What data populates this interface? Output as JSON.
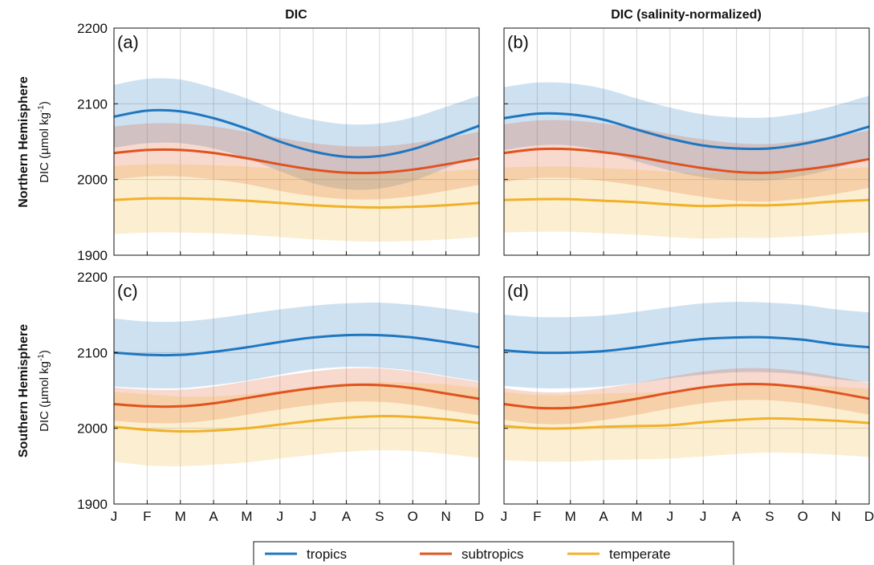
{
  "chart_data": {
    "type": "line",
    "column_titles": [
      "DIC",
      "DIC (salinity-normalized)"
    ],
    "row_titles": [
      "Northern Hemisphere",
      "Southern Hemisphere"
    ],
    "ylabel_prefix": "DIC (µmol kg",
    "ylabel_sup": "-1",
    "ylabel_suffix": ")",
    "ylim": [
      1900,
      2200
    ],
    "yticks": [
      1900,
      2000,
      2100,
      2200
    ],
    "categories": [
      "J",
      "F",
      "M",
      "A",
      "M",
      "J",
      "J",
      "A",
      "S",
      "O",
      "N",
      "D"
    ],
    "grid": true,
    "legend_position": "bottom",
    "colors": {
      "tropics": "#1f77c0",
      "subtropics": "#e0531f",
      "temperate": "#f0b12a"
    },
    "panels": [
      {
        "tag": "(a)",
        "series": [
          {
            "name": "tropics",
            "values": [
              2083,
              2091,
              2090,
              2081,
              2067,
              2050,
              2037,
              2030,
              2031,
              2040,
              2055,
              2071
            ],
            "lower": [
              2042,
              2048,
              2048,
              2041,
              2028,
              2011,
              1995,
              1987,
              1988,
              1998,
              2015,
              2032
            ],
            "upper": [
              2125,
              2133,
              2132,
              2121,
              2107,
              2090,
              2079,
              2073,
              2074,
              2082,
              2096,
              2111
            ]
          },
          {
            "name": "subtropics",
            "values": [
              2035,
              2039,
              2039,
              2035,
              2028,
              2020,
              2013,
              2009,
              2009,
              2013,
              2020,
              2028
            ],
            "lower": [
              2000,
              2004,
              2004,
              2000,
              1994,
              1985,
              1978,
              1974,
              1974,
              1978,
              1985,
              1993
            ],
            "upper": [
              2070,
              2074,
              2074,
              2070,
              2063,
              2055,
              2048,
              2044,
              2044,
              2048,
              2055,
              2063
            ]
          },
          {
            "name": "temperate",
            "values": [
              1973,
              1975,
              1975,
              1974,
              1972,
              1969,
              1966,
              1964,
              1963,
              1964,
              1966,
              1969
            ],
            "lower": [
              1928,
              1930,
              1930,
              1929,
              1927,
              1924,
              1921,
              1919,
              1918,
              1919,
              1921,
              1924
            ],
            "upper": [
              2018,
              2020,
              2020,
              2019,
              2017,
              2014,
              2011,
              2009,
              2008,
              2009,
              2011,
              2014
            ]
          }
        ]
      },
      {
        "tag": "(b)",
        "series": [
          {
            "name": "tropics",
            "values": [
              2081,
              2087,
              2086,
              2079,
              2066,
              2054,
              2045,
              2041,
              2041,
              2047,
              2057,
              2070
            ],
            "lower": [
              2039,
              2045,
              2045,
              2037,
              2024,
              2012,
              2003,
              1999,
              1999,
              2005,
              2015,
              2029
            ],
            "upper": [
              2122,
              2128,
              2127,
              2120,
              2107,
              2095,
              2086,
              2082,
              2082,
              2088,
              2098,
              2111
            ]
          },
          {
            "name": "subtropics",
            "values": [
              2035,
              2040,
              2040,
              2036,
              2030,
              2022,
              2015,
              2010,
              2009,
              2013,
              2019,
              2027
            ],
            "lower": [
              1997,
              2002,
              2002,
              1998,
              1992,
              1984,
              1977,
              1972,
              1971,
              1975,
              1981,
              1989
            ],
            "upper": [
              2073,
              2078,
              2078,
              2074,
              2068,
              2060,
              2053,
              2048,
              2047,
              2051,
              2057,
              2065
            ]
          },
          {
            "name": "temperate",
            "values": [
              1973,
              1974,
              1974,
              1972,
              1970,
              1967,
              1965,
              1966,
              1966,
              1968,
              1971,
              1973
            ],
            "lower": [
              1930,
              1931,
              1931,
              1929,
              1927,
              1924,
              1922,
              1923,
              1923,
              1925,
              1928,
              1930
            ],
            "upper": [
              2016,
              2017,
              2017,
              2015,
              2013,
              2010,
              2008,
              2009,
              2009,
              2011,
              2014,
              2016
            ]
          }
        ]
      },
      {
        "tag": "(c)",
        "series": [
          {
            "name": "tropics",
            "values": [
              2100,
              2097,
              2097,
              2101,
              2107,
              2114,
              2120,
              2123,
              2123,
              2120,
              2114,
              2107
            ],
            "lower": [
              2055,
              2053,
              2053,
              2057,
              2063,
              2071,
              2078,
              2081,
              2080,
              2076,
              2069,
              2062
            ],
            "upper": [
              2145,
              2141,
              2141,
              2145,
              2151,
              2157,
              2162,
              2165,
              2166,
              2163,
              2158,
              2152
            ]
          },
          {
            "name": "subtropics",
            "values": [
              2032,
              2029,
              2029,
              2033,
              2040,
              2047,
              2053,
              2057,
              2057,
              2053,
              2046,
              2039
            ],
            "lower": [
              2010,
              2007,
              2007,
              2011,
              2018,
              2025,
              2031,
              2035,
              2035,
              2031,
              2024,
              2017
            ],
            "upper": [
              2054,
              2051,
              2051,
              2055,
              2062,
              2069,
              2075,
              2079,
              2079,
              2075,
              2068,
              2061
            ]
          },
          {
            "name": "temperate",
            "values": [
              2002,
              1998,
              1996,
              1997,
              2000,
              2005,
              2010,
              2014,
              2016,
              2015,
              2012,
              2007
            ],
            "lower": [
              1956,
              1951,
              1950,
              1952,
              1955,
              1960,
              1965,
              1969,
              1971,
              1970,
              1966,
              1961
            ],
            "upper": [
              2048,
              2045,
              2042,
              2042,
              2045,
              2050,
              2055,
              2059,
              2061,
              2060,
              2058,
              2053
            ]
          }
        ]
      },
      {
        "tag": "(d)",
        "series": [
          {
            "name": "tropics",
            "values": [
              2103,
              2100,
              2100,
              2102,
              2107,
              2113,
              2118,
              2120,
              2120,
              2117,
              2111,
              2107
            ],
            "lower": [
              2056,
              2053,
              2053,
              2055,
              2060,
              2066,
              2071,
              2074,
              2074,
              2071,
              2065,
              2061
            ],
            "upper": [
              2150,
              2147,
              2147,
              2149,
              2154,
              2160,
              2165,
              2167,
              2166,
              2163,
              2157,
              2153
            ]
          },
          {
            "name": "subtropics",
            "values": [
              2032,
              2027,
              2027,
              2032,
              2039,
              2047,
              2054,
              2058,
              2058,
              2054,
              2047,
              2039
            ],
            "lower": [
              2011,
              2006,
              2006,
              2011,
              2018,
              2026,
              2033,
              2037,
              2037,
              2033,
              2026,
              2018
            ],
            "upper": [
              2053,
              2048,
              2048,
              2053,
              2060,
              2068,
              2075,
              2079,
              2079,
              2075,
              2068,
              2060
            ]
          },
          {
            "name": "temperate",
            "values": [
              2003,
              2000,
              2000,
              2002,
              2003,
              2004,
              2008,
              2011,
              2013,
              2012,
              2010,
              2007
            ],
            "lower": [
              1958,
              1956,
              1956,
              1958,
              1959,
              1960,
              1963,
              1966,
              1968,
              1967,
              1965,
              1962
            ],
            "upper": [
              2048,
              2044,
              2044,
              2046,
              2047,
              2048,
              2053,
              2056,
              2058,
              2057,
              2055,
              2052
            ]
          }
        ]
      }
    ],
    "legend": [
      {
        "name": "tropics",
        "label": "tropics"
      },
      {
        "name": "subtropics",
        "label": "subtropics"
      },
      {
        "name": "temperate",
        "label": "temperate"
      }
    ]
  }
}
